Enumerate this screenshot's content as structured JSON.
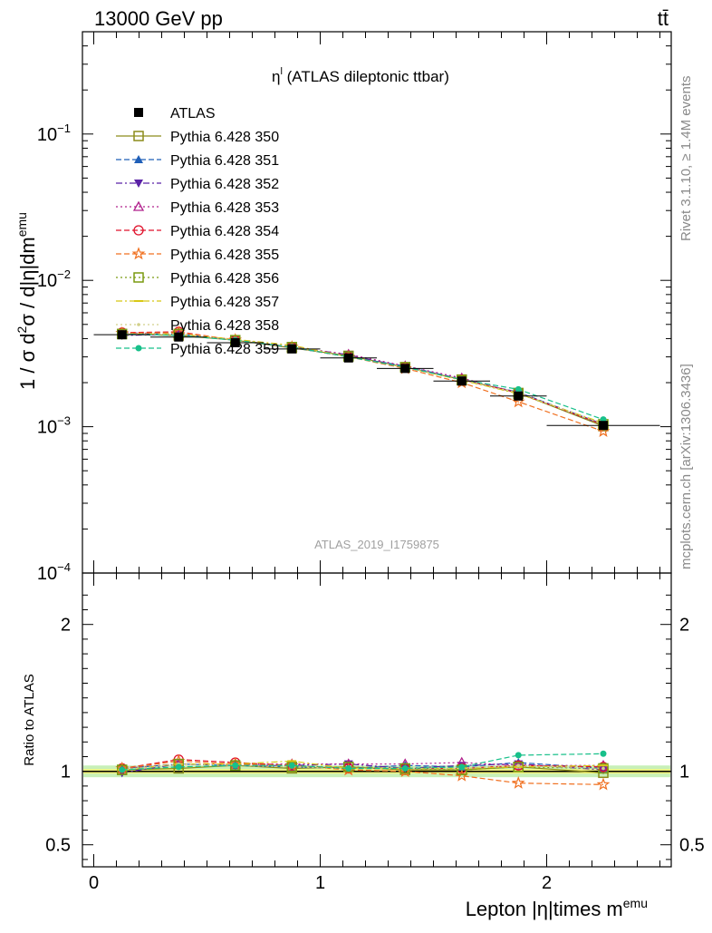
{
  "header": {
    "energy_label": "13000 GeV pp",
    "process_label": "tt̄"
  },
  "side_labels": {
    "rivet": "Rivet 3.1.10, ≥ 1.4M events",
    "mcplots": "mcplots.cern.ch [arXiv:1306.3436]"
  },
  "chart_data": [
    {
      "type": "line",
      "title": "η^l (ATLAS dileptonic ttbar)",
      "analysis_id": "ATLAS_2019_I1759875",
      "ylabel": "1 / σ  d²σ / d|η|dm^emu",
      "y_scale": "log",
      "ylim": [
        0.0001,
        0.5
      ],
      "y_ticks": [
        {
          "label": "10",
          "exp": "−1",
          "value": 0.1
        },
        {
          "label": "10",
          "exp": "−2",
          "value": 0.01
        },
        {
          "label": "10",
          "exp": "−3",
          "value": 0.001
        },
        {
          "label": "10",
          "exp": "−4",
          "value": 0.0001
        }
      ],
      "legend_position": "top-left",
      "x": [
        0.125,
        0.375,
        0.625,
        0.875,
        1.125,
        1.375,
        1.625,
        1.875,
        2.25
      ],
      "x_bin_edges": [
        0,
        0.25,
        0.5,
        0.75,
        1.0,
        1.25,
        1.5,
        1.75,
        2.0,
        2.5
      ],
      "series": [
        {
          "name": "ATLAS",
          "color": "#000000",
          "marker": "filled-square",
          "dash": "none",
          "values": [
            0.00425,
            0.0041,
            0.00375,
            0.0034,
            0.00295,
            0.0025,
            0.00205,
            0.00162,
            0.00102
          ]
        },
        {
          "name": "Pythia 6.428 350",
          "color": "#8c8c1a",
          "marker": "open-square",
          "dash": "solid",
          "values": [
            0.0043,
            0.0042,
            0.0039,
            0.00345,
            0.00305,
            0.00255,
            0.0021,
            0.0017,
            0.00101
          ]
        },
        {
          "name": "Pythia 6.428 351",
          "color": "#1f5fb8",
          "marker": "filled-triangle-up",
          "dash": "dashed",
          "values": [
            0.00432,
            0.0043,
            0.0039,
            0.00348,
            0.003,
            0.0026,
            0.0021,
            0.00172,
            0.00104
          ]
        },
        {
          "name": "Pythia 6.428 352",
          "color": "#5a22a6",
          "marker": "filled-triangle-down",
          "dash": "dashdot",
          "values": [
            0.0042,
            0.0043,
            0.0039,
            0.00352,
            0.0031,
            0.00255,
            0.00212,
            0.0017,
            0.00103
          ]
        },
        {
          "name": "Pythia 6.428 353",
          "color": "#b0208c",
          "marker": "open-triangle-up",
          "dash": "dotted",
          "values": [
            0.0044,
            0.0043,
            0.0039,
            0.0035,
            0.00312,
            0.0026,
            0.00215,
            0.0017,
            0.00105
          ]
        },
        {
          "name": "Pythia 6.428 354",
          "color": "#e0102a",
          "marker": "open-circle",
          "dash": "dashed",
          "values": [
            0.0044,
            0.00445,
            0.0039,
            0.0035,
            0.003,
            0.00255,
            0.0021,
            0.0017,
            0.00103
          ]
        },
        {
          "name": "Pythia 6.428 355",
          "color": "#f07020",
          "marker": "open-star",
          "dash": "dashed",
          "values": [
            0.00435,
            0.0044,
            0.00392,
            0.0035,
            0.003,
            0.0025,
            0.002,
            0.00148,
            0.00093
          ]
        },
        {
          "name": "Pythia 6.428 356",
          "color": "#7a9a10",
          "marker": "open-square",
          "dash": "dotted",
          "values": [
            0.0043,
            0.0043,
            0.0039,
            0.0035,
            0.00302,
            0.00255,
            0.00208,
            0.00168,
            0.00104
          ]
        },
        {
          "name": "Pythia 6.428 357",
          "color": "#d8c814",
          "marker": "dash-mark",
          "dash": "dashdot",
          "values": [
            0.0043,
            0.0043,
            0.00395,
            0.0036,
            0.003,
            0.00255,
            0.00208,
            0.00168,
            0.00106
          ]
        },
        {
          "name": "Pythia 6.428 358",
          "color": "#d2d08a",
          "marker": "small-dot",
          "dash": "dotted",
          "values": [
            0.0043,
            0.0043,
            0.0039,
            0.0035,
            0.003,
            0.00255,
            0.0021,
            0.0017,
            0.00104
          ]
        },
        {
          "name": "Pythia 6.428 359",
          "color": "#18c08a",
          "marker": "filled-circle",
          "dash": "dashed",
          "values": [
            0.0043,
            0.0042,
            0.0039,
            0.0035,
            0.003,
            0.00255,
            0.0021,
            0.0018,
            0.00112
          ]
        }
      ]
    },
    {
      "type": "line",
      "title": "",
      "ylabel": "Ratio to ATLAS",
      "xlabel": "Lepton |η|times m^emu",
      "ylim": [
        0.35,
        2.35
      ],
      "y_ticks": [
        0.5,
        1,
        2
      ],
      "xlim": [
        -0.05,
        2.55
      ],
      "x_ticks": [
        0,
        1,
        2
      ],
      "reference_line": 1,
      "band": {
        "inner": [
          0.985,
          1.015
        ],
        "outer": [
          0.96,
          1.04
        ],
        "inner_color": "#f2f27a",
        "outer_color": "#c8f0b8"
      },
      "x": [
        0.125,
        0.375,
        0.625,
        0.875,
        1.125,
        1.375,
        1.625,
        1.875,
        2.25
      ],
      "series": [
        {
          "name": "Pythia 6.428 350",
          "values": [
            1.01,
            1.02,
            1.04,
            1.02,
            1.03,
            1.01,
            1.01,
            1.03,
            0.99
          ]
        },
        {
          "name": "Pythia 6.428 351",
          "values": [
            1.02,
            1.05,
            1.04,
            1.03,
            1.02,
            1.04,
            1.03,
            1.06,
            1.02
          ]
        },
        {
          "name": "Pythia 6.428 352",
          "values": [
            0.99,
            1.05,
            1.04,
            1.04,
            1.05,
            1.02,
            1.04,
            1.05,
            1.01
          ]
        },
        {
          "name": "Pythia 6.428 353",
          "values": [
            1.02,
            1.05,
            1.05,
            1.05,
            1.05,
            1.05,
            1.06,
            1.04,
            1.04
          ]
        },
        {
          "name": "Pythia 6.428 354",
          "values": [
            1.02,
            1.08,
            1.06,
            1.04,
            1.02,
            1.02,
            1.02,
            1.04,
            1.03
          ]
        },
        {
          "name": "Pythia 6.428 355",
          "values": [
            1.02,
            1.07,
            1.05,
            1.04,
            1.01,
            1.0,
            0.97,
            0.92,
            0.91
          ]
        },
        {
          "name": "Pythia 6.428 356",
          "values": [
            1.01,
            1.05,
            1.04,
            1.03,
            1.03,
            1.02,
            1.01,
            1.03,
            1.02
          ]
        },
        {
          "name": "Pythia 6.428 357",
          "values": [
            1.01,
            1.05,
            1.05,
            1.07,
            1.02,
            1.02,
            1.02,
            1.03,
            1.04
          ]
        },
        {
          "name": "Pythia 6.428 358",
          "values": [
            1.01,
            1.05,
            1.04,
            1.03,
            1.02,
            1.02,
            1.02,
            1.04,
            1.02
          ]
        },
        {
          "name": "Pythia 6.428 359",
          "values": [
            1.01,
            1.03,
            1.04,
            1.04,
            1.02,
            1.02,
            1.03,
            1.11,
            1.12
          ]
        }
      ]
    }
  ]
}
